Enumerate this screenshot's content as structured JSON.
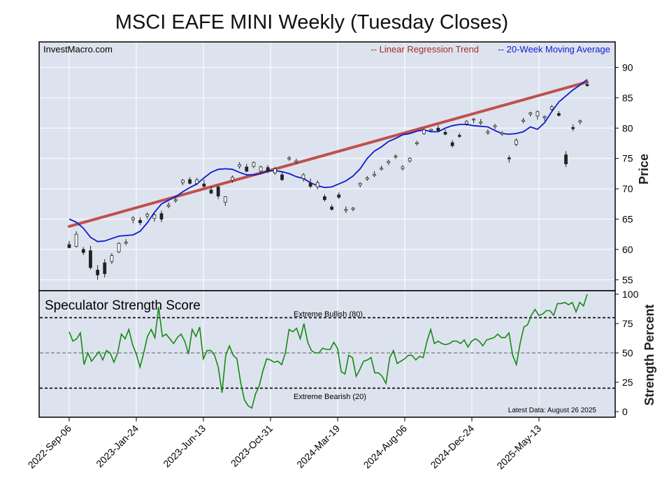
{
  "title": "MSCI EAFE MINI Weekly (Tuesday Closes)",
  "colors": {
    "panel_bg": "#dde3ee",
    "grid": "#ffffff",
    "trend": "#c0504d",
    "ma": "#0b1bd0",
    "score": "#158a15",
    "candle": "#222222",
    "trend_label": "#a52a2a"
  },
  "chart_data": [
    {
      "type": "candlestick",
      "source_label": "InvestMacro.com",
      "legend": [
        "-- Linear Regression Trend",
        "-- 20-Week Moving Average"
      ],
      "legend_placement": "top-right",
      "ylabel": "Price",
      "ylim": [
        53.2,
        94.2
      ],
      "yticks": [
        55,
        60,
        65,
        70,
        75,
        80,
        85,
        90
      ],
      "grid": true,
      "x_tick_labels": [
        "2022-Sep-06",
        "2023-Jan-24",
        "2023-Jun-13",
        "2023-Oct-31",
        "2024-Mar-19",
        "2024-Aug-06",
        "2024-Dec-24",
        "2025-May-13"
      ],
      "trend_line": {
        "start": 63.8,
        "end": 87.6
      },
      "ma_line": [
        65.0,
        64.5,
        63.5,
        62.0,
        61.3,
        61.4,
        61.8,
        62.2,
        62.3,
        62.4,
        63.0,
        64.4,
        66.1,
        67.5,
        68.1,
        68.7,
        69.5,
        70.2,
        70.8,
        71.8,
        72.7,
        73.2,
        73.3,
        73.2,
        72.7,
        72.3,
        72.3,
        72.5,
        72.9,
        73.0,
        72.8,
        72.5,
        72.0,
        71.7,
        71.0,
        70.5,
        70.2,
        70.3,
        70.8,
        71.3,
        72.1,
        73.3,
        75.0,
        76.2,
        76.9,
        77.8,
        78.3,
        78.9,
        79.1,
        79.5,
        79.7,
        79.4,
        79.4,
        80.0,
        80.4,
        80.6,
        80.6,
        80.4,
        80.3,
        80.2,
        79.6,
        79.1,
        79.0,
        79.1,
        79.4,
        80.2,
        79.8,
        80.9,
        82.7,
        84.3,
        85.3,
        86.3,
        87.1,
        88.0
      ],
      "candles": [
        [
          60.8,
          61.4,
          60.2,
          60.3
        ],
        [
          60.5,
          63.0,
          60.3,
          62.5
        ],
        [
          60.0,
          60.4,
          59.1,
          59.5
        ],
        [
          59.8,
          60.6,
          56.7,
          57.0
        ],
        [
          56.6,
          57.4,
          55.0,
          55.8
        ],
        [
          57.8,
          58.4,
          55.4,
          56.0
        ],
        [
          58.0,
          59.4,
          57.6,
          59.0
        ],
        [
          59.6,
          61.2,
          59.4,
          61.0
        ],
        [
          61.1,
          61.7,
          60.7,
          61.2
        ],
        [
          64.9,
          65.5,
          64.3,
          65.2
        ],
        [
          64.8,
          65.3,
          64.0,
          64.4
        ],
        [
          65.5,
          66.1,
          65.0,
          65.8
        ],
        [
          65.1,
          66.0,
          64.6,
          65.7
        ],
        [
          65.9,
          66.4,
          64.5,
          65.0
        ],
        [
          67.1,
          67.8,
          66.8,
          67.3
        ],
        [
          68.1,
          68.6,
          67.7,
          68.2
        ],
        [
          71.0,
          71.6,
          70.6,
          71.4
        ],
        [
          71.5,
          71.9,
          70.7,
          70.9
        ],
        [
          70.9,
          71.8,
          70.6,
          71.5
        ],
        [
          70.8,
          71.5,
          70.2,
          70.4
        ],
        [
          69.8,
          70.4,
          69.1,
          69.3
        ],
        [
          70.3,
          70.6,
          68.3,
          68.8
        ],
        [
          67.8,
          68.8,
          67.2,
          68.7
        ],
        [
          71.4,
          72.2,
          71.0,
          71.9
        ],
        [
          73.7,
          74.4,
          73.3,
          74.0
        ],
        [
          73.6,
          74.1,
          72.7,
          72.9
        ],
        [
          73.7,
          74.5,
          73.4,
          74.3
        ],
        [
          72.9,
          73.8,
          72.4,
          73.6
        ],
        [
          73.5,
          73.9,
          72.6,
          72.9
        ],
        [
          72.6,
          73.6,
          72.3,
          73.3
        ],
        [
          72.3,
          72.9,
          71.3,
          71.5
        ],
        [
          74.9,
          75.4,
          74.6,
          75.1
        ],
        [
          74.4,
          75.0,
          74.1,
          74.6
        ],
        [
          71.7,
          72.6,
          71.2,
          72.3
        ],
        [
          70.9,
          71.7,
          70.1,
          70.4
        ],
        [
          70.3,
          71.4,
          69.9,
          71.0
        ],
        [
          68.7,
          69.1,
          67.9,
          68.2
        ],
        [
          67.0,
          67.4,
          66.4,
          66.6
        ],
        [
          69.0,
          69.4,
          68.3,
          68.6
        ],
        [
          66.5,
          67.1,
          66.0,
          66.6
        ],
        [
          66.7,
          67.0,
          66.3,
          66.8
        ],
        [
          70.6,
          71.1,
          70.2,
          70.9
        ],
        [
          71.6,
          72.1,
          71.3,
          71.8
        ],
        [
          72.2,
          72.9,
          71.9,
          72.4
        ],
        [
          73.3,
          73.8,
          73.0,
          73.4
        ],
        [
          74.3,
          74.8,
          73.9,
          74.5
        ],
        [
          75.3,
          75.7,
          74.9,
          75.4
        ],
        [
          73.3,
          73.9,
          73.0,
          73.6
        ],
        [
          74.6,
          75.2,
          74.3,
          75.0
        ],
        [
          77.5,
          77.9,
          77.1,
          77.6
        ],
        [
          79.1,
          79.9,
          78.9,
          79.7
        ],
        [
          79.6,
          79.9,
          79.3,
          79.8
        ],
        [
          80.0,
          80.5,
          79.4,
          79.6
        ],
        [
          79.3,
          79.8,
          78.8,
          79.0
        ],
        [
          77.6,
          78.0,
          76.8,
          77.1
        ],
        [
          78.8,
          79.2,
          78.4,
          78.7
        ],
        [
          80.7,
          81.3,
          80.4,
          81.1
        ],
        [
          81.4,
          81.7,
          80.8,
          81.5
        ],
        [
          80.9,
          81.5,
          80.5,
          81.0
        ],
        [
          79.2,
          79.8,
          78.9,
          79.4
        ],
        [
          80.2,
          80.7,
          79.8,
          80.4
        ],
        [
          79.0,
          79.5,
          78.7,
          79.2
        ],
        [
          75.1,
          75.5,
          74.3,
          75.0
        ],
        [
          77.3,
          78.3,
          77.0,
          78.0
        ],
        [
          81.2,
          81.7,
          80.8,
          81.3
        ],
        [
          82.3,
          82.7,
          81.9,
          82.5
        ],
        [
          82.0,
          82.9,
          81.4,
          82.7
        ],
        [
          81.7,
          82.1,
          81.2,
          81.9
        ],
        [
          83.1,
          83.8,
          82.8,
          83.5
        ],
        [
          82.4,
          82.8,
          81.9,
          82.1
        ],
        [
          75.6,
          76.2,
          73.6,
          74.1
        ],
        [
          80.1,
          80.6,
          79.5,
          79.9
        ],
        [
          81.0,
          81.4,
          80.6,
          81.2
        ],
        [
          87.2,
          87.6,
          86.8,
          87.0
        ]
      ]
    },
    {
      "type": "line",
      "title": "Speculator Strength Score",
      "ylabel": "Strength Percent",
      "ylim": [
        0,
        100
      ],
      "yticks": [
        0,
        25,
        50,
        75,
        100
      ],
      "reference_lines": [
        {
          "value": 80,
          "label": "Extreme Bullish (80)"
        },
        {
          "value": 50,
          "label": ""
        },
        {
          "value": 20,
          "label": "Extreme Bearish (20)"
        }
      ],
      "annotation": "Latest Data: August 26 2025",
      "values": [
        68,
        60,
        62,
        67,
        40,
        50,
        43,
        47,
        51,
        44,
        52,
        50,
        42,
        50,
        66,
        62,
        70,
        57,
        49,
        38,
        50,
        64,
        70,
        63,
        89,
        64,
        66,
        62,
        58,
        63,
        66,
        60,
        49,
        70,
        64,
        72,
        45,
        52,
        52,
        48,
        38,
        16,
        48,
        56,
        48,
        45,
        25,
        10,
        5,
        3,
        15,
        22,
        35,
        45,
        44,
        42,
        43,
        40,
        50,
        70,
        68,
        71,
        62,
        75,
        59,
        52,
        50,
        50,
        54,
        53,
        53,
        59,
        54,
        34,
        32,
        48,
        46,
        30,
        36,
        43,
        44,
        46,
        33,
        33,
        30,
        24,
        46,
        52,
        41,
        43,
        45,
        48,
        48,
        44,
        47,
        46,
        60,
        70,
        58,
        60,
        58,
        57,
        58,
        60,
        60,
        58,
        61,
        55,
        60,
        62,
        60,
        56,
        61,
        62,
        63,
        66,
        63,
        63,
        67,
        48,
        40,
        58,
        72,
        74,
        82,
        87,
        82,
        83,
        86,
        86,
        82,
        92,
        92,
        93,
        91,
        93,
        85,
        93,
        90,
        100
      ],
      "x_tick_labels": [
        "2022-Sep-06",
        "2023-Jan-24",
        "2023-Jun-13",
        "2023-Oct-31",
        "2024-Mar-19",
        "2024-Aug-06",
        "2024-Dec-24",
        "2025-May-13"
      ]
    }
  ]
}
